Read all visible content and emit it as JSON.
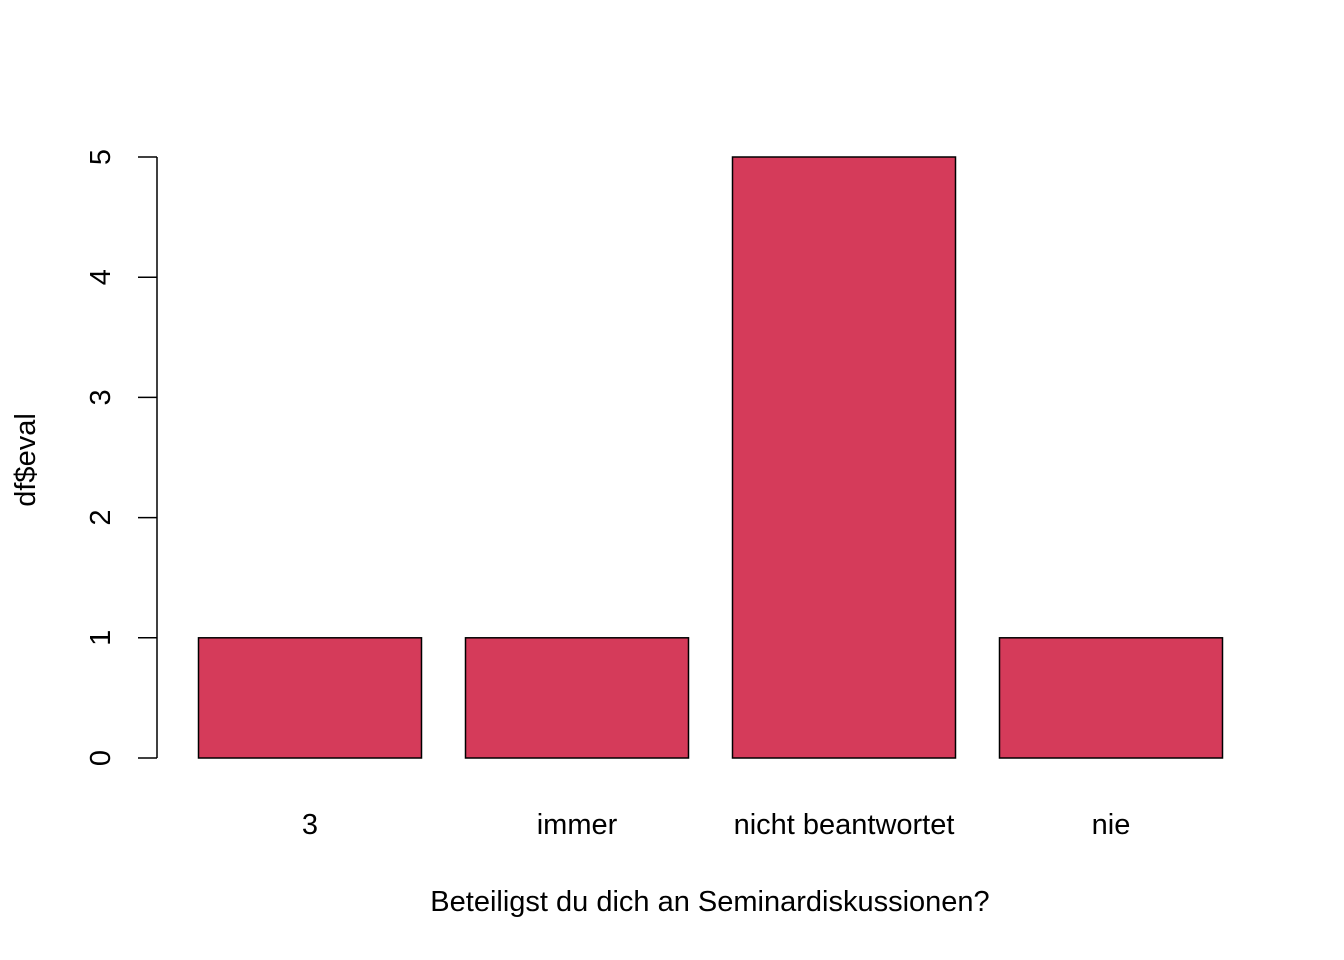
{
  "chart_data": {
    "type": "bar",
    "categories": [
      "3",
      "immer",
      "nicht beantwortet",
      "nie"
    ],
    "values": [
      1,
      1,
      5,
      1
    ],
    "xlabel": "Beteiligst du dich an Seminardiskussionen?",
    "ylabel": "df$eval",
    "ylim": [
      0,
      5
    ],
    "yticks": [
      0,
      1,
      2,
      3,
      4,
      5
    ],
    "grid": false,
    "bar_color": "#D53B5A",
    "bar_border_color": "#000000"
  }
}
